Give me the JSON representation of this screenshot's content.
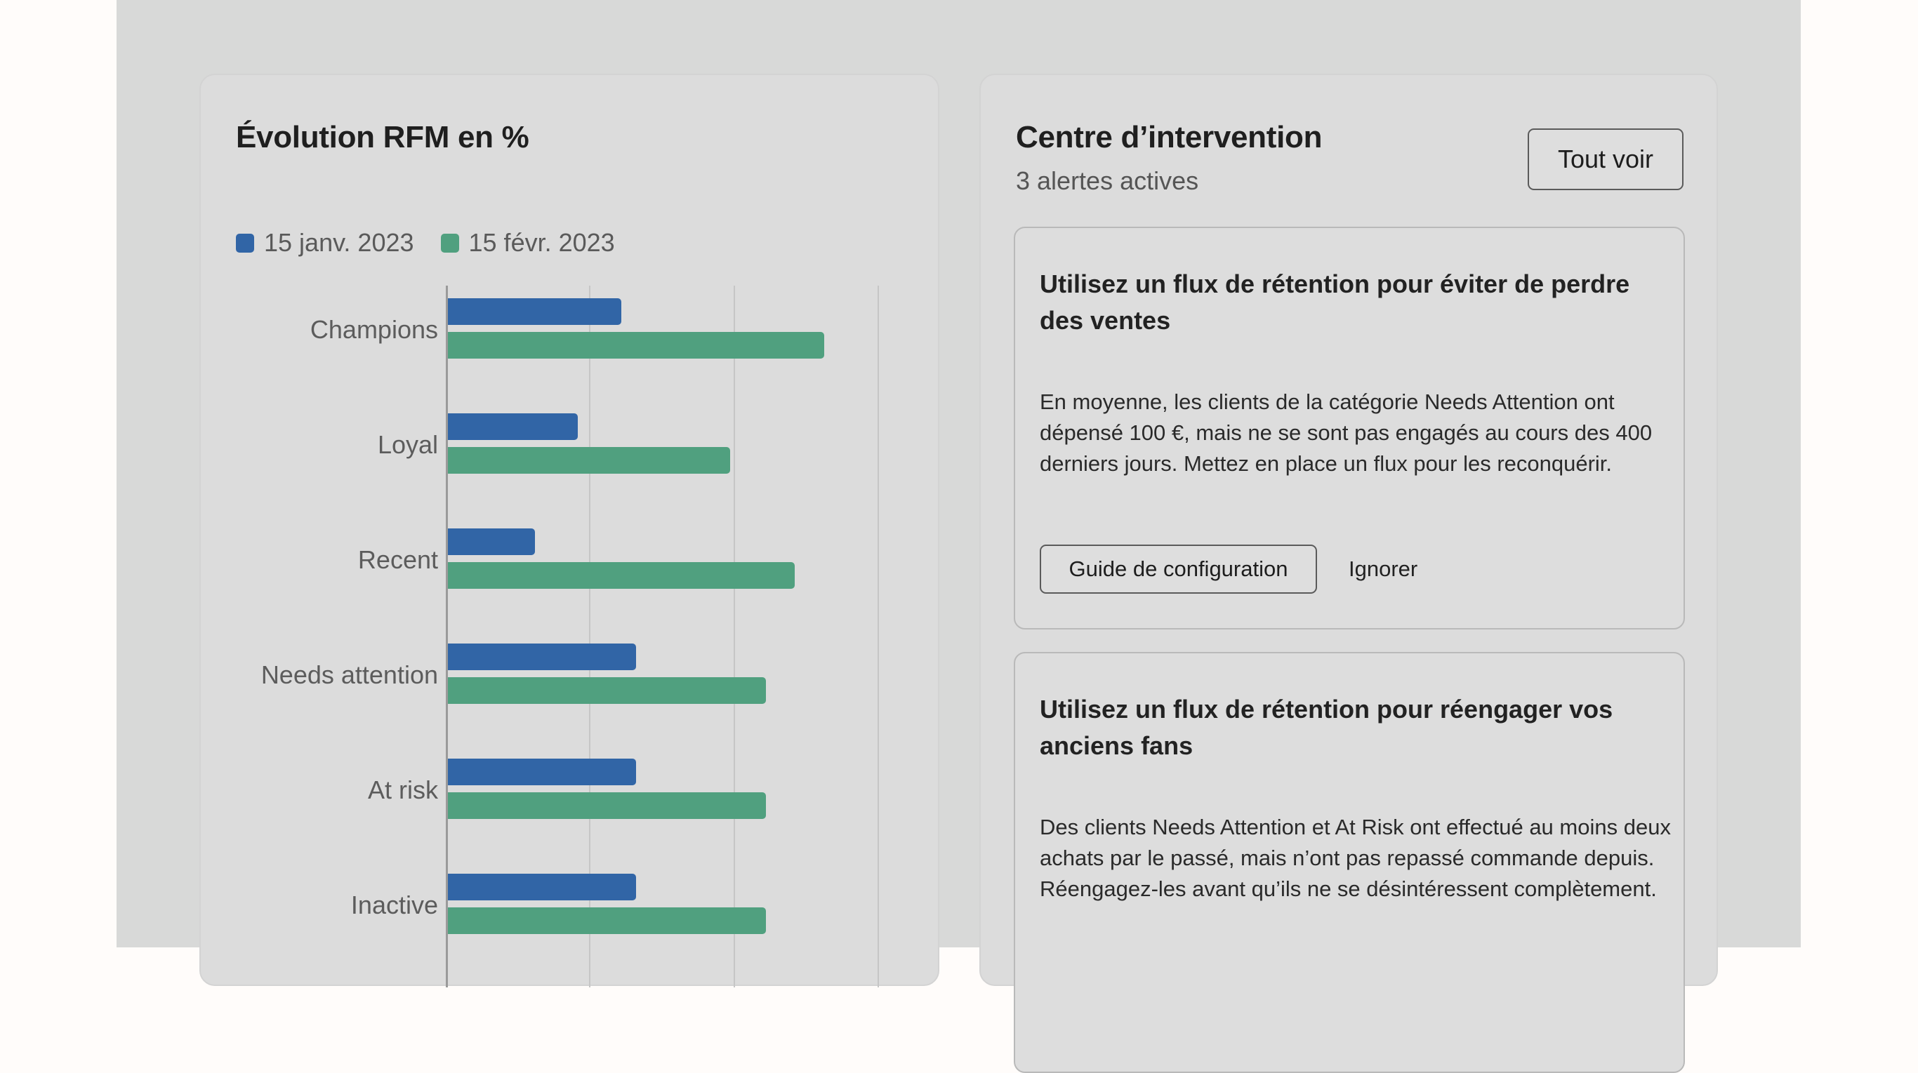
{
  "colors": {
    "page_background": "#fffcfa",
    "panel_background": "#d8d9d8",
    "card_background": "#dcdcdc",
    "series_jan": "#3165a6",
    "series_feb": "#50a07f"
  },
  "chart_card": {
    "title": "Évolution RFM en %",
    "legend": [
      {
        "label": "15 janv. 2023",
        "color": "#3165a6"
      },
      {
        "label": "15 févr. 2023",
        "color": "#50a07f"
      }
    ]
  },
  "chart_data": {
    "type": "bar",
    "orientation": "horizontal",
    "title": "Évolution RFM en %",
    "xlabel": "",
    "ylabel": "",
    "categories": [
      "Champions",
      "Loyal",
      "Recent",
      "Needs attention",
      "At risk",
      "Inactive"
    ],
    "series": [
      {
        "name": "15 janv. 2023",
        "color": "#3165a6",
        "values": [
          12,
          9,
          6,
          13,
          13,
          13
        ]
      },
      {
        "name": "15 févr. 2023",
        "color": "#50a07f",
        "values": [
          26,
          19.5,
          24,
          22,
          22,
          22
        ]
      }
    ],
    "xlim": [
      0,
      35
    ],
    "gridlines": [
      0,
      10,
      20,
      30
    ],
    "grid": true,
    "tick_labels_visible": false,
    "legend_position": "top-left"
  },
  "action_center": {
    "title": "Centre d’intervention",
    "subtitle": "3 alertes actives",
    "view_all_label": "Tout voir",
    "alerts": [
      {
        "title": "Utilisez un flux de rétention pour éviter de perdre des ventes",
        "body": "En moyenne, les clients de la catégorie Needs Attention ont dépensé 100 €, mais ne se sont pas engagés au cours des 400 derniers jours. Mettez en place un flux pour les reconquérir.",
        "primary_label": "Guide de configuration",
        "secondary_label": "Ignorer"
      },
      {
        "title": "Utilisez un flux de rétention pour réengager vos anciens fans",
        "body": "Des clients Needs Attention et At Risk ont effectué au moins deux achats par le passé, mais n’ont pas repassé commande depuis. Réengagez-les avant qu’ils ne se désintéressent complètement."
      }
    ]
  }
}
